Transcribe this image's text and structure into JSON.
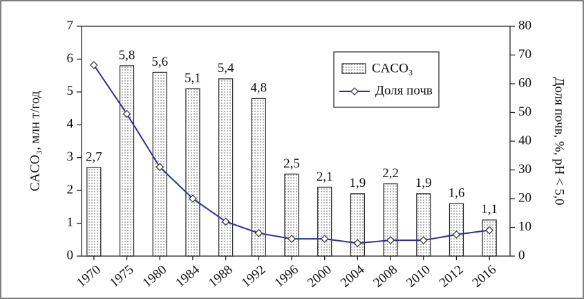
{
  "chart_data": {
    "type": "bar",
    "categories": [
      "1970",
      "1975",
      "1980",
      "1984",
      "1988",
      "1992",
      "1996",
      "2000",
      "2004",
      "2008",
      "2010",
      "2012",
      "2016"
    ],
    "series": [
      {
        "name": "CACO₃",
        "type": "bar",
        "color": "#000000",
        "values": [
          2.7,
          5.8,
          5.6,
          5.1,
          5.4,
          4.8,
          2.5,
          2.1,
          1.9,
          2.2,
          1.9,
          1.6,
          1.1
        ],
        "value_labels": [
          "2,7",
          "5,8",
          "5,6",
          "5,1",
          "5,4",
          "4,8",
          "2,5",
          "2,1",
          "1,9",
          "2,2",
          "1,9",
          "1,6",
          "1,1"
        ]
      },
      {
        "name": "Доля почв",
        "type": "line",
        "axis": "y2",
        "color": "#2b2f9e",
        "values": [
          66.5,
          49.5,
          31,
          20,
          12,
          8,
          6,
          6,
          4.5,
          5.5,
          5.5,
          7.5,
          9
        ]
      }
    ],
    "ylabel": "CACO₃, млн т/год",
    "y2label": "Доля почв, %, pH < 5,0",
    "ylim": [
      0,
      7
    ],
    "yticks": [
      0,
      1,
      2,
      3,
      4,
      5,
      6,
      7
    ],
    "y2lim": [
      0,
      80
    ],
    "y2ticks": [
      0,
      10,
      20,
      30,
      40,
      50,
      60,
      70,
      80
    ],
    "legend": "upper right"
  }
}
